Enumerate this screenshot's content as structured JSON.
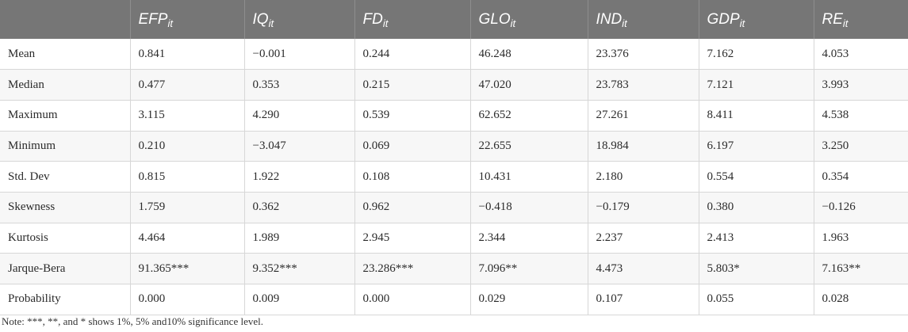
{
  "table": {
    "header": [
      {
        "base": "",
        "sub": ""
      },
      {
        "base": "EFP",
        "sub": "it"
      },
      {
        "base": "IQ",
        "sub": "it"
      },
      {
        "base": "FD",
        "sub": "it"
      },
      {
        "base": "GLO",
        "sub": "it"
      },
      {
        "base": "IND",
        "sub": "it"
      },
      {
        "base": "GDP",
        "sub": "it"
      },
      {
        "base": "RE",
        "sub": "it"
      }
    ],
    "rows": [
      [
        "Mean",
        "0.841",
        "−0.001",
        "0.244",
        "46.248",
        "23.376",
        "7.162",
        "4.053"
      ],
      [
        "Median",
        "0.477",
        "0.353",
        "0.215",
        "47.020",
        "23.783",
        "7.121",
        "3.993"
      ],
      [
        "Maximum",
        "3.115",
        "4.290",
        "0.539",
        "62.652",
        "27.261",
        "8.411",
        "4.538"
      ],
      [
        "Minimum",
        "0.210",
        "−3.047",
        "0.069",
        "22.655",
        "18.984",
        "6.197",
        "3.250"
      ],
      [
        "Std. Dev",
        "0.815",
        "1.922",
        "0.108",
        "10.431",
        "2.180",
        "0.554",
        "0.354"
      ],
      [
        "Skewness",
        "1.759",
        "0.362",
        "0.962",
        "−0.418",
        "−0.179",
        "0.380",
        "−0.126"
      ],
      [
        "Kurtosis",
        "4.464",
        "1.989",
        "2.945",
        "2.344",
        "2.237",
        "2.413",
        "1.963"
      ],
      [
        "Jarque-Bera",
        "91.365***",
        "9.352***",
        "23.286***",
        "7.096**",
        "4.473",
        "5.803*",
        "7.163**"
      ],
      [
        "Probability",
        "0.000",
        "0.009",
        "0.000",
        "0.029",
        "0.107",
        "0.055",
        "0.028"
      ]
    ]
  },
  "note": "Note: ***, **, and * shows 1%, 5% and10% significance level."
}
